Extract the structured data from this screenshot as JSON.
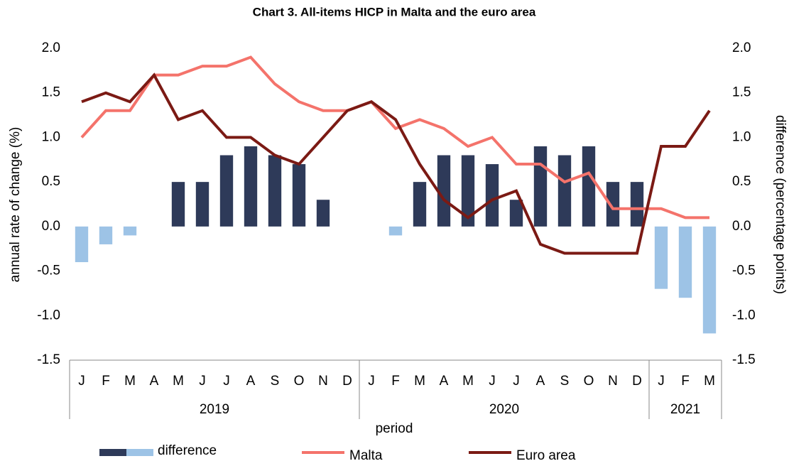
{
  "chart_data": {
    "type": "bar_line",
    "title": "Chart 3. All-items HICP in Malta and the euro area",
    "x_label": "period",
    "y_label": "annual rate of change (%)",
    "y2_label": "difference (percentage points)",
    "categories": [
      "J",
      "F",
      "M",
      "A",
      "M",
      "J",
      "J",
      "A",
      "S",
      "O",
      "N",
      "D",
      "J",
      "F",
      "M",
      "A",
      "M",
      "J",
      "J",
      "A",
      "S",
      "O",
      "N",
      "D",
      "J",
      "F",
      "M"
    ],
    "category_groups": [
      {
        "name": "2019",
        "count": 12
      },
      {
        "name": "2020",
        "count": 12
      },
      {
        "name": "2021",
        "count": 3
      }
    ],
    "series": [
      {
        "name": "difference",
        "type": "bar",
        "axis": "y2",
        "color": "#2e3a59",
        "negative_color": "#9dc3e6",
        "values": [
          -0.4,
          -0.2,
          -0.1,
          0,
          0.5,
          0.5,
          0.8,
          0.9,
          0.8,
          0.7,
          0.3,
          0,
          0,
          -0.1,
          0.5,
          0.8,
          0.8,
          0.7,
          0.3,
          0.9,
          0.8,
          0.9,
          0.5,
          0.5,
          -0.7,
          -0.8,
          -1.2
        ]
      },
      {
        "name": "Malta",
        "type": "line",
        "color": "#f4736b",
        "values": [
          1.0,
          1.3,
          1.3,
          1.7,
          1.7,
          1.8,
          1.8,
          1.9,
          1.6,
          1.4,
          1.3,
          1.3,
          1.4,
          1.1,
          1.2,
          1.1,
          0.9,
          1.0,
          0.7,
          0.7,
          0.5,
          0.6,
          0.2,
          0.2,
          0.2,
          0.1,
          0.1
        ]
      },
      {
        "name": "Euro area",
        "type": "line",
        "color": "#7b1a14",
        "values": [
          1.4,
          1.5,
          1.4,
          1.7,
          1.2,
          1.3,
          1.0,
          1.0,
          0.8,
          0.7,
          1.0,
          1.3,
          1.4,
          1.2,
          0.7,
          0.3,
          0.1,
          0.3,
          0.4,
          -0.2,
          -0.3,
          -0.3,
          -0.3,
          -0.3,
          0.9,
          0.9,
          1.3
        ]
      }
    ],
    "ylim": [
      -1.5,
      2.0
    ],
    "yticks": [
      -1.5,
      {
        "value": -1,
        "label": "-1.0"
      },
      -0.5,
      {
        "value": 0,
        "label": "0.0"
      },
      0.5,
      {
        "value": 1,
        "label": "1.0"
      },
      1.5,
      {
        "value": 2,
        "label": "2.0"
      }
    ],
    "y2lim": [
      -1.5,
      2.0
    ],
    "y2ticks": [
      -1.5,
      {
        "value": -1,
        "label": "-1.0"
      },
      -0.5,
      {
        "value": 0,
        "label": "0.0"
      },
      0.5,
      {
        "value": 1,
        "label": "1.0"
      },
      1.5,
      {
        "value": 2,
        "label": "2.0"
      }
    ],
    "grid": false,
    "legend": "bottom"
  }
}
